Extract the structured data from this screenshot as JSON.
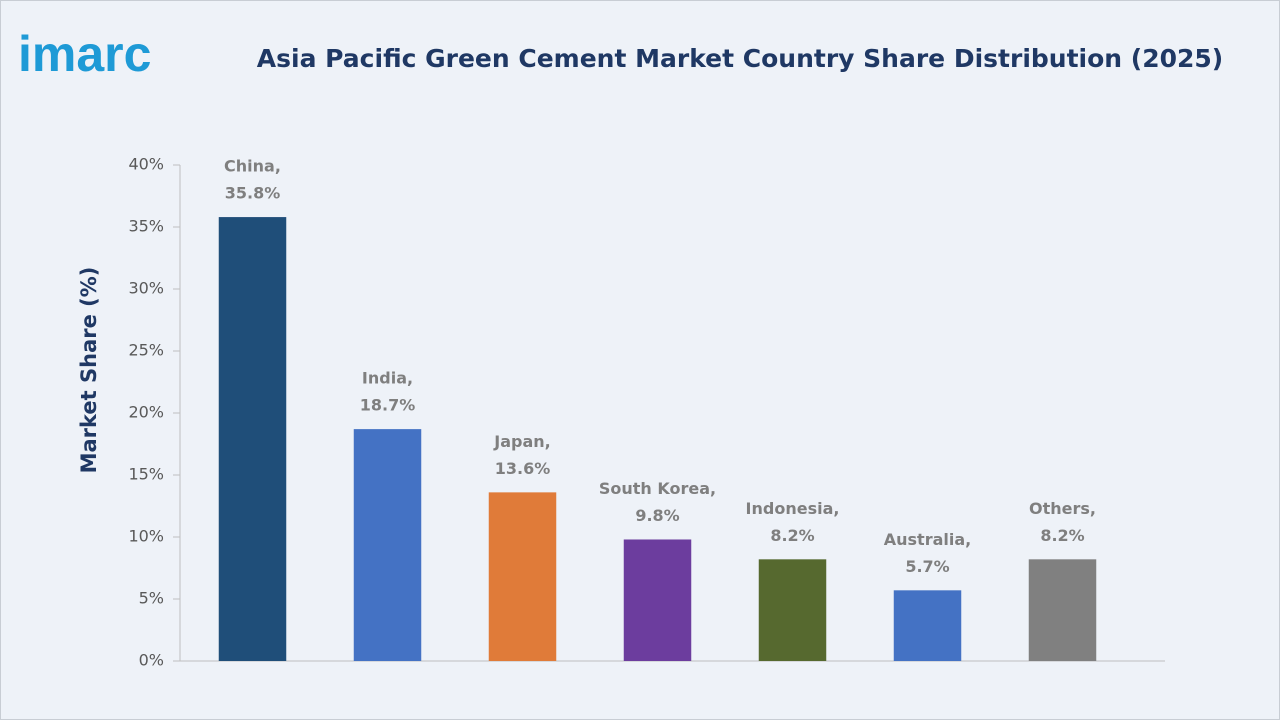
{
  "logo": "imarc",
  "chart_data": {
    "type": "bar",
    "title": "Asia Pacific Green Cement Market Country Share Distribution (2025)",
    "y_label": "Market Share (%)",
    "categories": [
      "China,",
      "India,",
      "Japan,",
      "South Korea,",
      "Indonesia,",
      "Australia,",
      "Others,"
    ],
    "values": [
      35.8,
      18.7,
      13.6,
      9.8,
      8.2,
      5.7,
      8.2
    ],
    "value_labels": [
      "35.8%",
      "18.7%",
      "13.6%",
      "9.8%",
      "8.2%",
      "5.7%",
      "8.2%"
    ],
    "colors": [
      "#1f4e79",
      "#4472c4",
      "#e07b39",
      "#6c3d9e",
      "#56692f",
      "#4472c4",
      "#808080"
    ],
    "ylim": [
      0,
      40
    ],
    "yticks": [
      {
        "value": 0,
        "label": "0%"
      },
      {
        "value": 5,
        "label": "5%"
      },
      {
        "value": 10,
        "label": "10%"
      },
      {
        "value": 15,
        "label": "15%"
      },
      {
        "value": 20,
        "label": "20%"
      },
      {
        "value": 25,
        "label": "25%"
      },
      {
        "value": 30,
        "label": "30%"
      },
      {
        "value": 35,
        "label": "35%"
      },
      {
        "value": 40,
        "label": "40%"
      }
    ],
    "grid": false
  }
}
